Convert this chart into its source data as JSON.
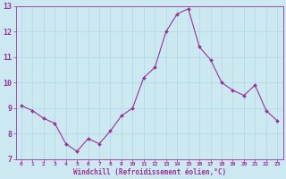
{
  "x": [
    0,
    1,
    2,
    3,
    4,
    5,
    6,
    7,
    8,
    9,
    10,
    11,
    12,
    13,
    14,
    15,
    16,
    17,
    18,
    19,
    20,
    21,
    22,
    23
  ],
  "y": [
    9.1,
    8.9,
    8.6,
    8.4,
    7.6,
    7.3,
    7.8,
    7.6,
    8.1,
    8.7,
    9.0,
    10.2,
    10.6,
    12.0,
    12.7,
    12.9,
    11.4,
    10.9,
    10.0,
    9.7,
    9.5,
    9.9,
    8.9,
    8.5
  ],
  "line_color": "#993399",
  "marker": "D",
  "marker_size": 2,
  "bg_color": "#cce8f0",
  "grid_color": "#b0d8e8",
  "xlabel": "Windchill (Refroidissement éolien,°C)",
  "xlabel_color": "#993399",
  "tick_color": "#993399",
  "label_color": "#993399",
  "ylim": [
    7,
    13
  ],
  "xlim": [
    -0.5,
    23.5
  ],
  "yticks": [
    7,
    8,
    9,
    10,
    11,
    12,
    13
  ],
  "xticks": [
    0,
    1,
    2,
    3,
    4,
    5,
    6,
    7,
    8,
    9,
    10,
    11,
    12,
    13,
    14,
    15,
    16,
    17,
    18,
    19,
    20,
    21,
    22,
    23
  ],
  "tick_fontsize": 4.5,
  "xlabel_fontsize": 5.5,
  "ylabel_fontsize": 6
}
